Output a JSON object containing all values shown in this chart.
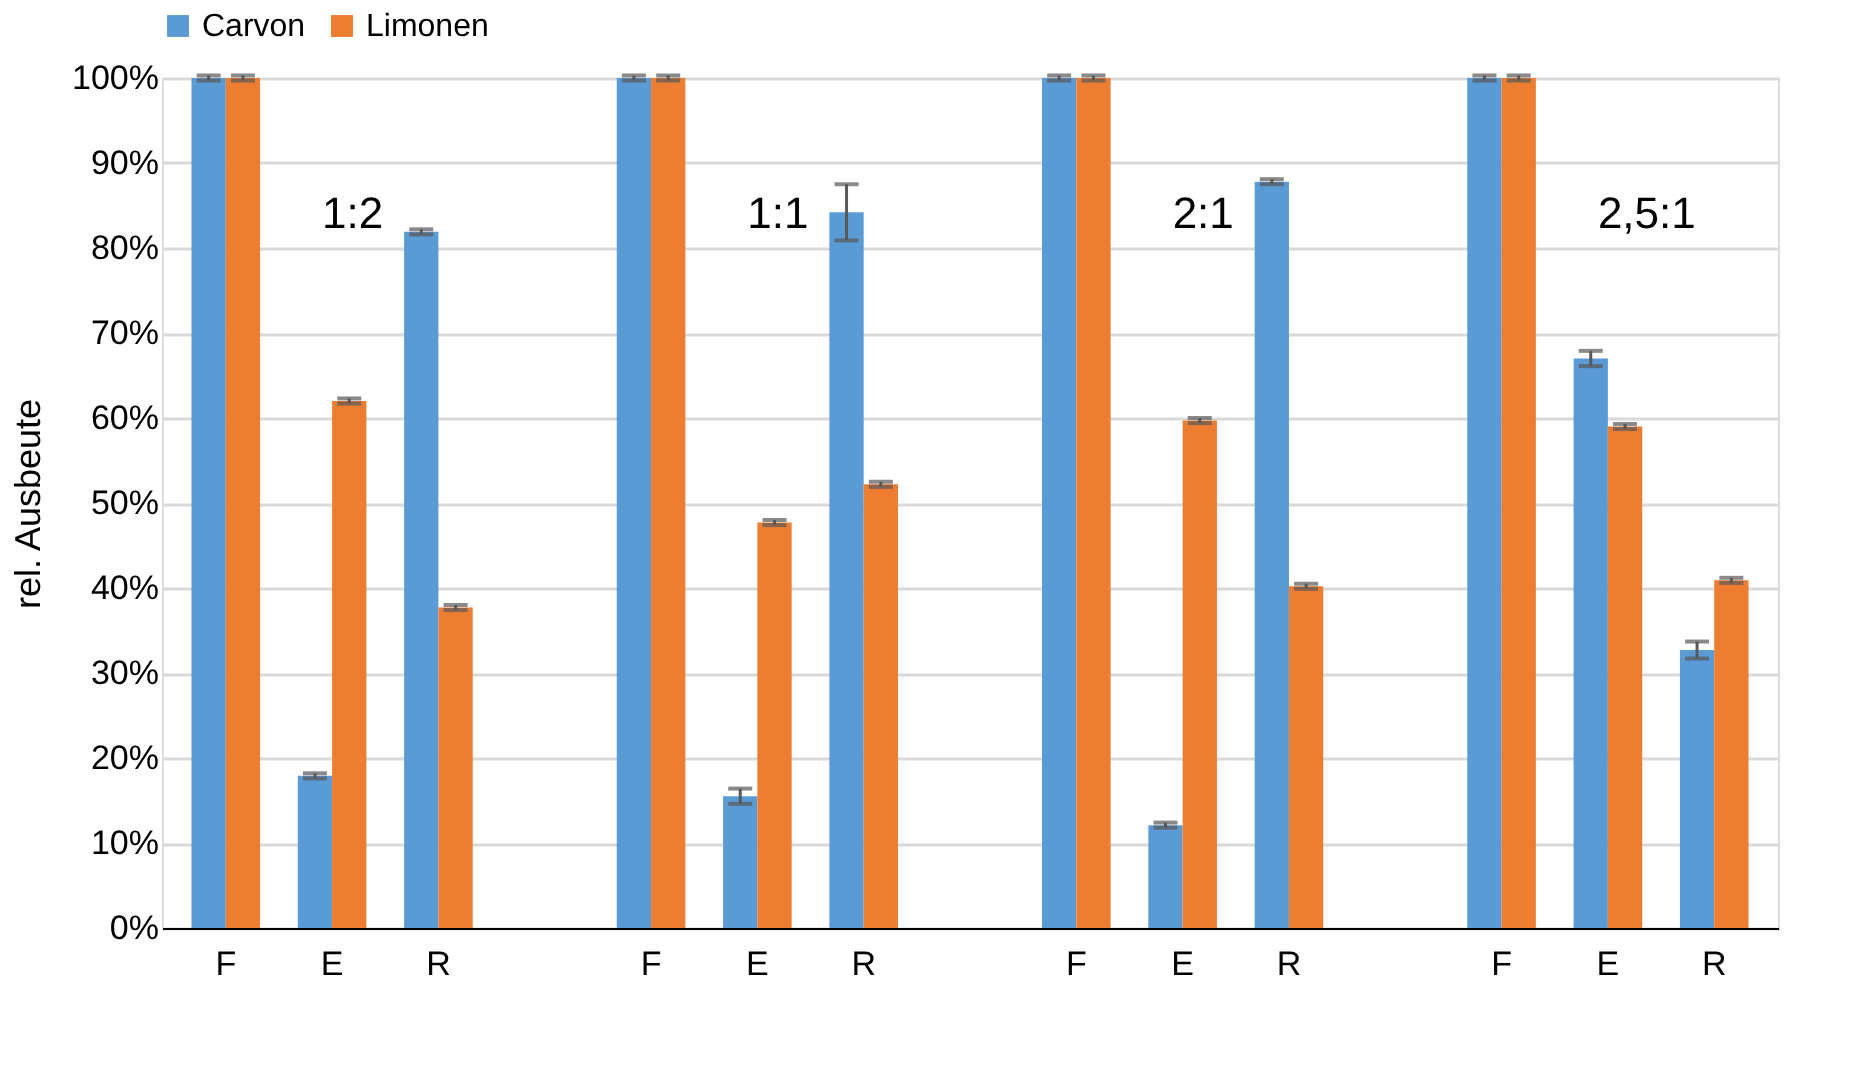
{
  "chart_data": {
    "type": "bar",
    "ylabel": "rel. Ausbeute",
    "categories": [
      "F",
      "E",
      "R",
      null,
      "F",
      "E",
      "R",
      null,
      "F",
      "E",
      "R",
      null,
      "F",
      "E",
      "R"
    ],
    "series": [
      {
        "name": "Carvon",
        "color": "#5b9bd5",
        "values": [
          100,
          17.9,
          81.9,
          null,
          100,
          15.5,
          84.2,
          null,
          100,
          12.1,
          87.8,
          null,
          100,
          67.0,
          32.7
        ],
        "errors": [
          0.3,
          0.3,
          0.3,
          null,
          0.3,
          0.9,
          3.3,
          null,
          0.3,
          0.3,
          0.3,
          null,
          0.3,
          0.9,
          1.0
        ]
      },
      {
        "name": "Limonen",
        "color": "#ed7d31",
        "values": [
          100,
          62.0,
          37.7,
          null,
          100,
          47.7,
          52.2,
          null,
          100,
          59.7,
          40.2,
          null,
          100,
          59.0,
          40.9
        ],
        "errors": [
          0.3,
          0.3,
          0.3,
          null,
          0.3,
          0.3,
          0.3,
          null,
          0.3,
          0.3,
          0.3,
          null,
          0.3,
          0.3,
          0.3
        ]
      }
    ],
    "annotations": [
      "1:2",
      "1:1",
      "2:1",
      "2,5:1"
    ],
    "ylim": [
      0,
      100
    ],
    "yticks": [
      {
        "value": 0,
        "label": "0%"
      },
      {
        "value": 10,
        "label": "10%"
      },
      {
        "value": 20,
        "label": "20%"
      },
      {
        "value": 30,
        "label": "30%"
      },
      {
        "value": 40,
        "label": "40%"
      },
      {
        "value": 50,
        "label": "50%"
      },
      {
        "value": 60,
        "label": "60%"
      },
      {
        "value": 70,
        "label": "70%"
      },
      {
        "value": 80,
        "label": "80%"
      },
      {
        "value": 90,
        "label": "90%"
      },
      {
        "value": 100,
        "label": "100%"
      }
    ],
    "grid": "y",
    "legend": "top"
  }
}
